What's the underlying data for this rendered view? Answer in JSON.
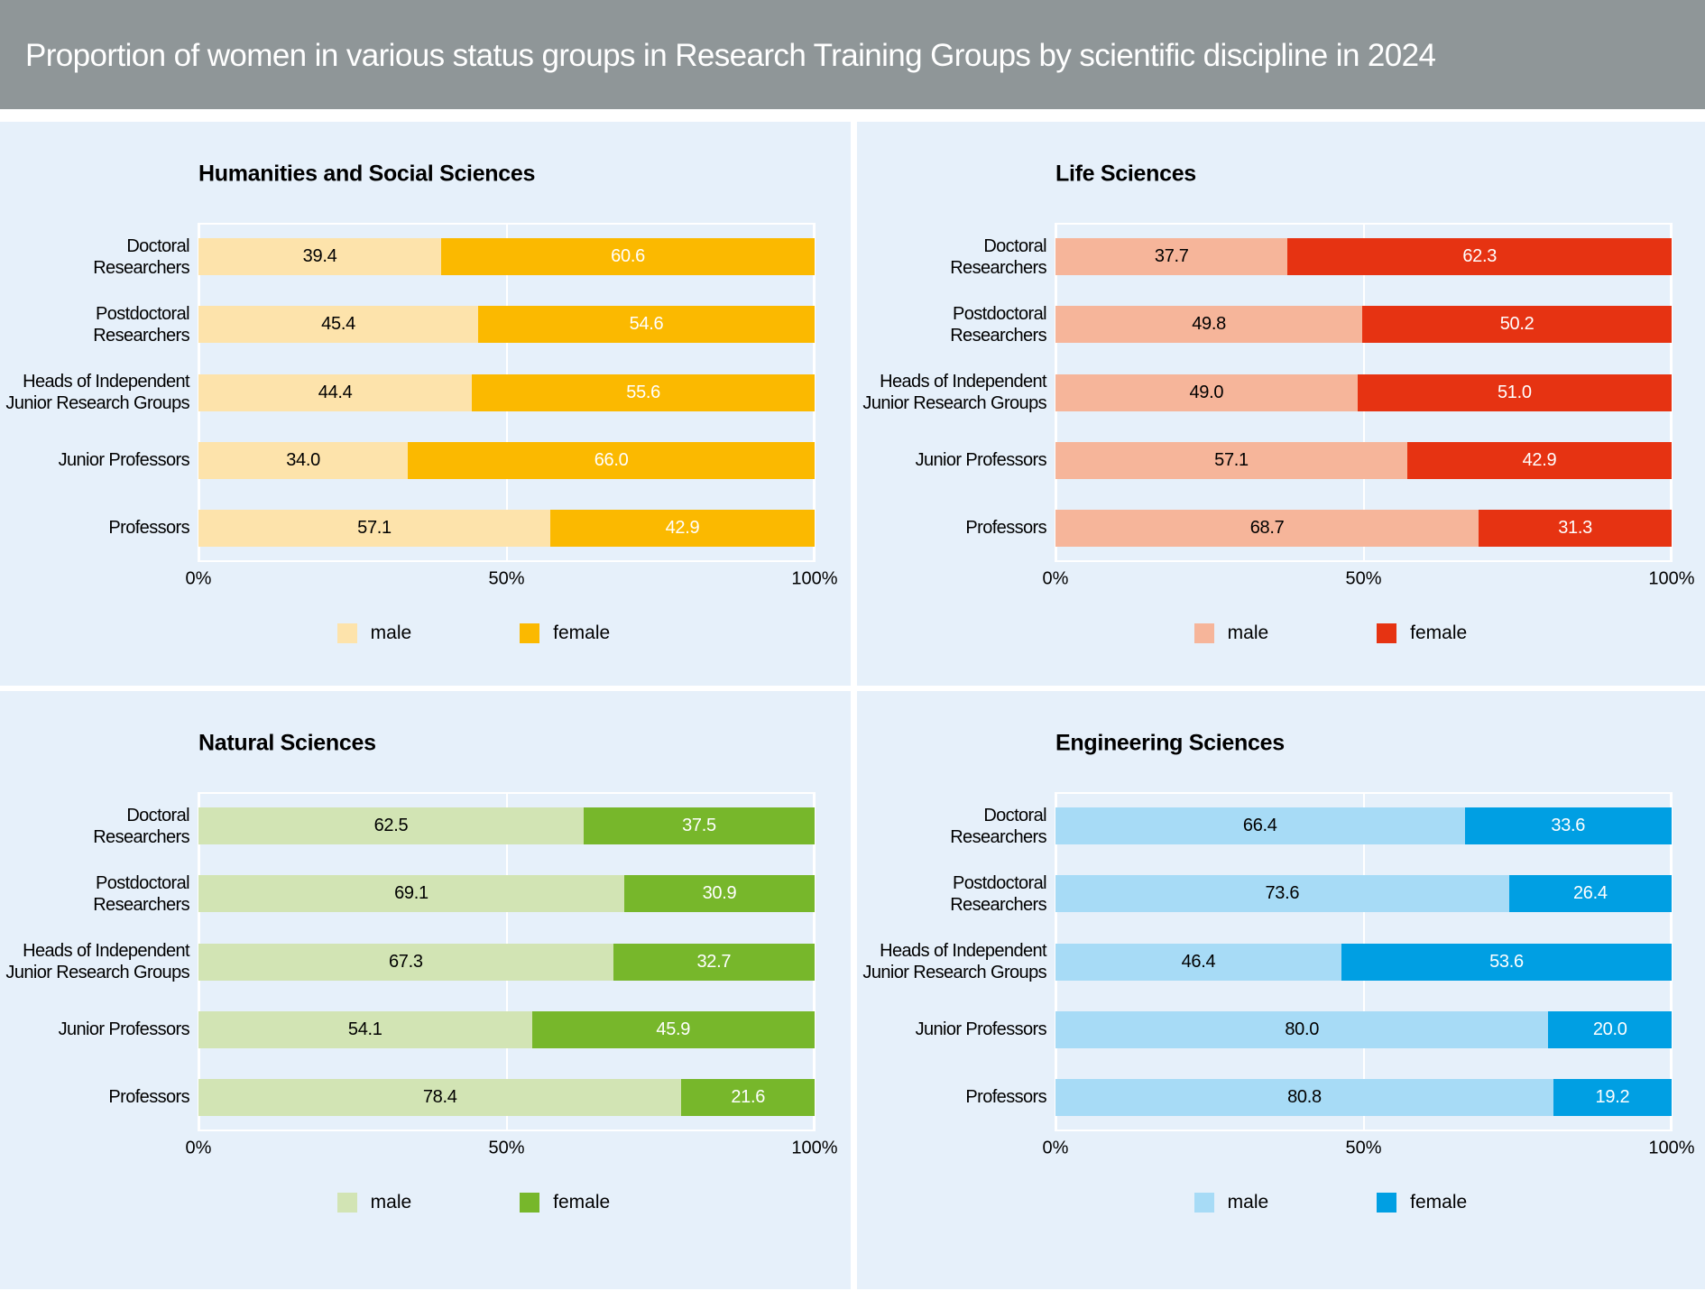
{
  "header": {
    "title": "Proportion of women in various status groups in Research Training Groups by scientific discipline in 2024"
  },
  "chart_data": [
    {
      "type": "stacked-barh",
      "title": "Humanities and Social Sciences",
      "categories": [
        "Doctoral\nResearchers",
        "Postdoctoral\nResearchers",
        "Heads of Independent\nJunior Research Groups",
        "Junior Professors",
        "Professors"
      ],
      "series": [
        {
          "name": "male",
          "color": "#fde3ab",
          "values": [
            39.4,
            45.4,
            44.4,
            34.0,
            57.1
          ],
          "value_labels": [
            "39.4",
            "45.4",
            "44.4",
            "34.0",
            "57.1"
          ]
        },
        {
          "name": "female",
          "color": "#fbb900",
          "values": [
            60.6,
            54.6,
            55.6,
            66.0,
            42.9
          ],
          "value_labels": [
            "60.6",
            "54.6",
            "55.6",
            "66.0",
            "42.9"
          ]
        }
      ],
      "xlim": [
        0,
        100
      ],
      "xticks": [
        {
          "value": 0,
          "label": "0%"
        },
        {
          "value": 50,
          "label": "50%"
        },
        {
          "value": 100,
          "label": "100%"
        }
      ],
      "grid": true
    },
    {
      "type": "stacked-barh",
      "title": "Life Sciences",
      "categories": [
        "Doctoral\nResearchers",
        "Postdoctoral\nResearchers",
        "Heads of Independent\nJunior Research Groups",
        "Junior Professors",
        "Professors"
      ],
      "series": [
        {
          "name": "male",
          "color": "#f6b59a",
          "values": [
            37.7,
            49.8,
            49.0,
            57.1,
            68.7
          ],
          "value_labels": [
            "37.7",
            "49.8",
            "49.0",
            "57.1",
            "68.7"
          ]
        },
        {
          "name": "female",
          "color": "#e63312",
          "values": [
            62.3,
            50.2,
            51.0,
            42.9,
            31.3
          ],
          "value_labels": [
            "62.3",
            "50.2",
            "51.0",
            "42.9",
            "31.3"
          ]
        }
      ],
      "xlim": [
        0,
        100
      ],
      "xticks": [
        {
          "value": 0,
          "label": "0%"
        },
        {
          "value": 50,
          "label": "50%"
        },
        {
          "value": 100,
          "label": "100%"
        }
      ],
      "grid": true
    },
    {
      "type": "stacked-barh",
      "title": "Natural Sciences",
      "categories": [
        "Doctoral\nResearchers",
        "Postdoctoral\nResearchers",
        "Heads of Independent\nJunior Research Groups",
        "Junior Professors",
        "Professors"
      ],
      "series": [
        {
          "name": "male",
          "color": "#d2e4b4",
          "values": [
            62.5,
            69.1,
            67.3,
            54.1,
            78.4
          ],
          "value_labels": [
            "62.5",
            "69.1",
            "67.3",
            "54.1",
            "78.4"
          ]
        },
        {
          "name": "female",
          "color": "#77b72b",
          "values": [
            37.5,
            30.9,
            32.7,
            45.9,
            21.6
          ],
          "value_labels": [
            "37.5",
            "30.9",
            "32.7",
            "45.9",
            "21.6"
          ]
        }
      ],
      "xlim": [
        0,
        100
      ],
      "xticks": [
        {
          "value": 0,
          "label": "0%"
        },
        {
          "value": 50,
          "label": "50%"
        },
        {
          "value": 100,
          "label": "100%"
        }
      ],
      "grid": true
    },
    {
      "type": "stacked-barh",
      "title": "Engineering Sciences",
      "categories": [
        "Doctoral\nResearchers",
        "Postdoctoral\nResearchers",
        "Heads of Independent\nJunior Research Groups",
        "Junior Professors",
        "Professors"
      ],
      "series": [
        {
          "name": "male",
          "color": "#a7dbf6",
          "values": [
            66.4,
            73.6,
            46.4,
            80.0,
            80.8
          ],
          "value_labels": [
            "66.4",
            "73.6",
            "46.4",
            "80.0",
            "80.8"
          ]
        },
        {
          "name": "female",
          "color": "#009fe3",
          "values": [
            33.6,
            26.4,
            53.6,
            20.0,
            19.2
          ],
          "value_labels": [
            "33.6",
            "26.4",
            "53.6",
            "20.0",
            "19.2"
          ]
        }
      ],
      "xlim": [
        0,
        100
      ],
      "xticks": [
        {
          "value": 0,
          "label": "0%"
        },
        {
          "value": 50,
          "label": "50%"
        },
        {
          "value": 100,
          "label": "100%"
        }
      ],
      "grid": true
    }
  ]
}
